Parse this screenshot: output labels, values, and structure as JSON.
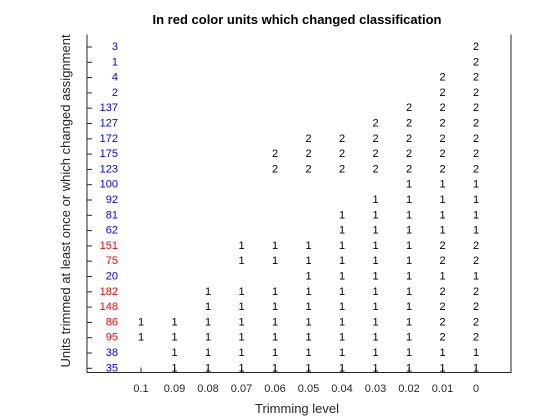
{
  "chart_data": {
    "type": "table",
    "title": "In red color units which changed classification",
    "xlabel": "Trimming level",
    "ylabel": "Units trimmed at least once or which changed assignment",
    "x_ticks": [
      "0.1",
      "0.09",
      "0.08",
      "0.07",
      "0.06",
      "0.05",
      "0.04",
      "0.03",
      "0.02",
      "0.01",
      "0"
    ],
    "colors": {
      "changed": "#ff0000",
      "unchanged": "#0000ff",
      "cell": "#000000"
    },
    "units": [
      {
        "label": "3",
        "changed": false,
        "values": [
          "",
          "",
          "",
          "",
          "",
          "",
          "",
          "",
          "",
          "",
          "2"
        ]
      },
      {
        "label": "1",
        "changed": false,
        "values": [
          "",
          "",
          "",
          "",
          "",
          "",
          "",
          "",
          "",
          "",
          "2"
        ]
      },
      {
        "label": "4",
        "changed": false,
        "values": [
          "",
          "",
          "",
          "",
          "",
          "",
          "",
          "",
          "",
          "2",
          "2"
        ]
      },
      {
        "label": "2",
        "changed": false,
        "values": [
          "",
          "",
          "",
          "",
          "",
          "",
          "",
          "",
          "",
          "2",
          "2"
        ]
      },
      {
        "label": "137",
        "changed": false,
        "values": [
          "",
          "",
          "",
          "",
          "",
          "",
          "",
          "",
          "2",
          "2",
          "2"
        ]
      },
      {
        "label": "127",
        "changed": false,
        "values": [
          "",
          "",
          "",
          "",
          "",
          "",
          "",
          "2",
          "2",
          "2",
          "2"
        ]
      },
      {
        "label": "172",
        "changed": false,
        "values": [
          "",
          "",
          "",
          "",
          "",
          "2",
          "2",
          "2",
          "2",
          "2",
          "2"
        ]
      },
      {
        "label": "175",
        "changed": false,
        "values": [
          "",
          "",
          "",
          "",
          "2",
          "2",
          "2",
          "2",
          "2",
          "2",
          "2"
        ]
      },
      {
        "label": "123",
        "changed": false,
        "values": [
          "",
          "",
          "",
          "",
          "2",
          "2",
          "2",
          "2",
          "2",
          "2",
          "2"
        ]
      },
      {
        "label": "100",
        "changed": false,
        "values": [
          "",
          "",
          "",
          "",
          "",
          "",
          "",
          "",
          "1",
          "1",
          "1"
        ]
      },
      {
        "label": "92",
        "changed": false,
        "values": [
          "",
          "",
          "",
          "",
          "",
          "",
          "",
          "1",
          "1",
          "1",
          "1"
        ]
      },
      {
        "label": "81",
        "changed": false,
        "values": [
          "",
          "",
          "",
          "",
          "",
          "",
          "1",
          "1",
          "1",
          "1",
          "1"
        ]
      },
      {
        "label": "62",
        "changed": false,
        "values": [
          "",
          "",
          "",
          "",
          "",
          "",
          "1",
          "1",
          "1",
          "1",
          "1"
        ]
      },
      {
        "label": "151",
        "changed": true,
        "values": [
          "",
          "",
          "",
          "1",
          "1",
          "1",
          "1",
          "1",
          "1",
          "2",
          "2"
        ]
      },
      {
        "label": "75",
        "changed": true,
        "values": [
          "",
          "",
          "",
          "1",
          "1",
          "1",
          "1",
          "1",
          "1",
          "2",
          "2"
        ]
      },
      {
        "label": "20",
        "changed": false,
        "values": [
          "",
          "",
          "",
          "",
          "",
          "1",
          "1",
          "1",
          "1",
          "1",
          "1"
        ]
      },
      {
        "label": "182",
        "changed": true,
        "values": [
          "",
          "",
          "1",
          "1",
          "1",
          "1",
          "1",
          "1",
          "1",
          "2",
          "2"
        ]
      },
      {
        "label": "148",
        "changed": true,
        "values": [
          "",
          "",
          "1",
          "1",
          "1",
          "1",
          "1",
          "1",
          "1",
          "2",
          "2"
        ]
      },
      {
        "label": "86",
        "changed": true,
        "values": [
          "1",
          "1",
          "1",
          "1",
          "1",
          "1",
          "1",
          "1",
          "1",
          "2",
          "2"
        ]
      },
      {
        "label": "95",
        "changed": true,
        "values": [
          "1",
          "1",
          "1",
          "1",
          "1",
          "1",
          "1",
          "1",
          "1",
          "2",
          "2"
        ]
      },
      {
        "label": "38",
        "changed": false,
        "values": [
          "",
          "1",
          "1",
          "1",
          "1",
          "1",
          "1",
          "1",
          "1",
          "1",
          "1"
        ]
      },
      {
        "label": "35",
        "changed": false,
        "values": [
          "",
          "1",
          "1",
          "1",
          "1",
          "1",
          "1",
          "1",
          "1",
          "1",
          "1"
        ]
      }
    ]
  }
}
